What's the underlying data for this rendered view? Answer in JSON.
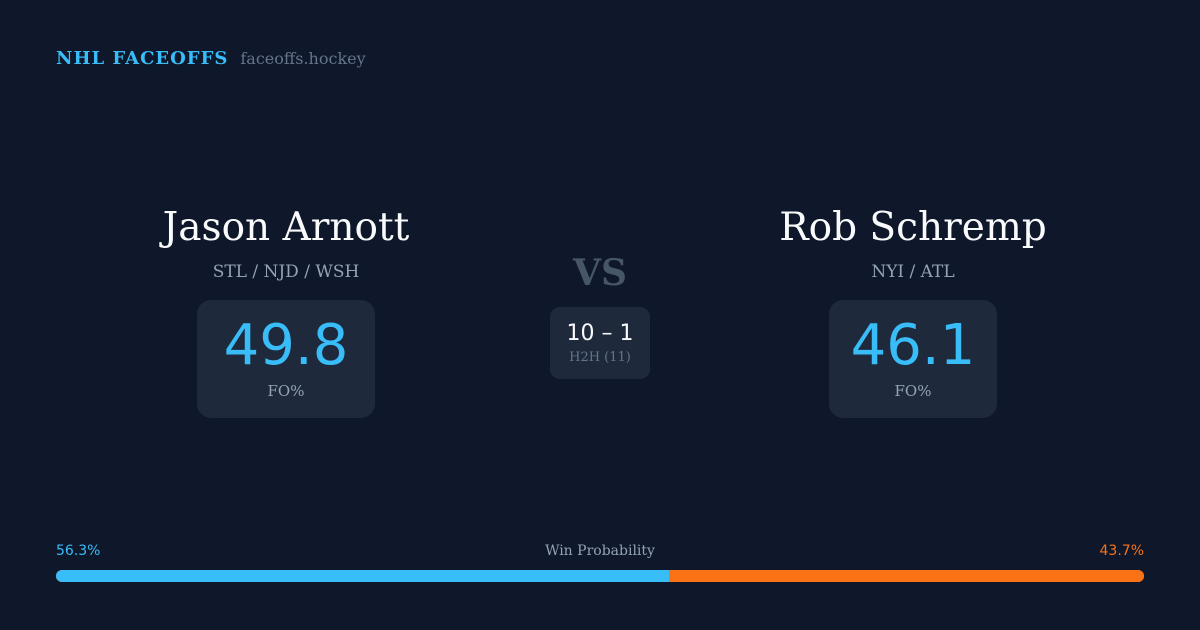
{
  "brand": {
    "name": "NHL FACEOFFS",
    "url": "faceoffs.hockey"
  },
  "player1": {
    "name": "Jason Arnott",
    "teams": "STL / NJD / WSH",
    "fo_pct": "49.8",
    "fo_label": "FO%"
  },
  "player2": {
    "name": "Rob Schremp",
    "teams": "NYI / ATL",
    "fo_pct": "46.1",
    "fo_label": "FO%"
  },
  "vs": "VS",
  "h2h": {
    "score": "10 – 1",
    "label": "H2H (11)"
  },
  "win_probability": {
    "label": "Win Probability",
    "left_text": "56.3%",
    "right_text": "43.7%",
    "left_value": 56.3,
    "right_value": 43.7,
    "colors": {
      "left": "#38bdf8",
      "right": "#f97316"
    }
  }
}
